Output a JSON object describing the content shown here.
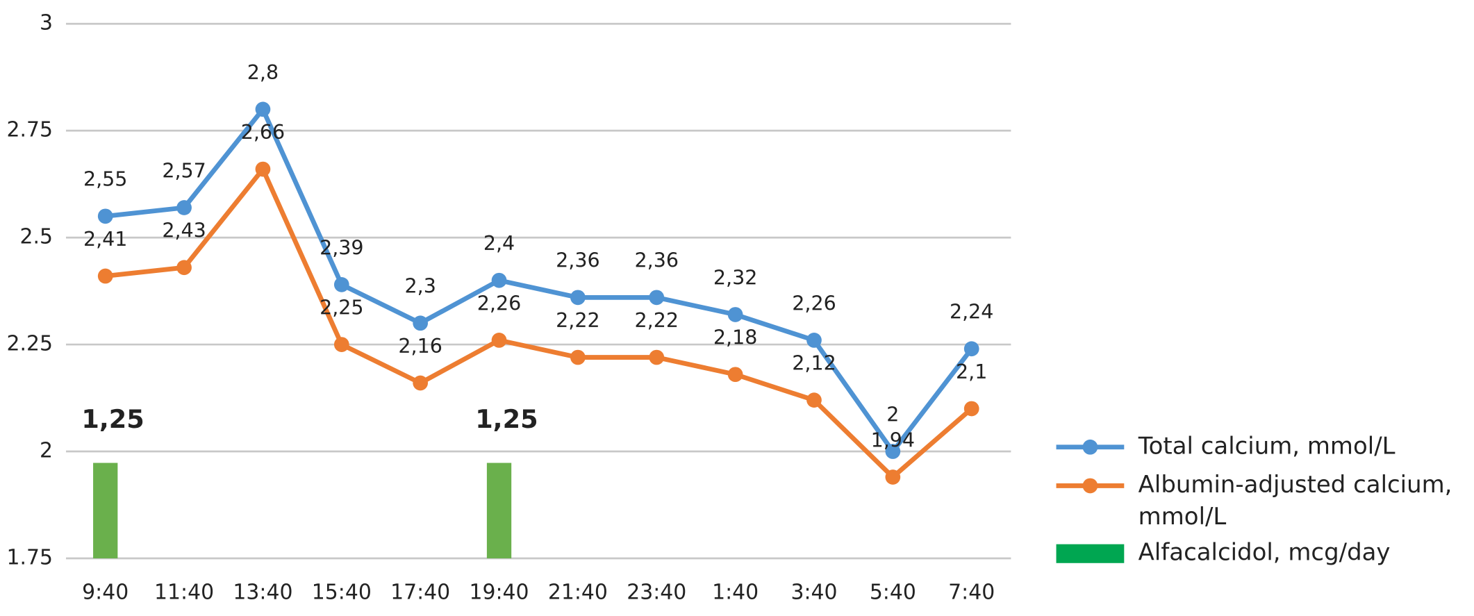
{
  "chart_data": {
    "type": "line",
    "categories": [
      "9:40",
      "11:40",
      "13:40",
      "15:40",
      "17:40",
      "19:40",
      "21:40",
      "23:40",
      "1:40",
      "3:40",
      "5:40",
      "7:40"
    ],
    "series": [
      {
        "name": "Total calcium, mmol/L",
        "color": "#4f93d3",
        "type": "line",
        "values": [
          2.55,
          2.57,
          2.8,
          2.39,
          2.3,
          2.4,
          2.36,
          2.36,
          2.32,
          2.26,
          2,
          2.24
        ],
        "value_labels": [
          "2,55",
          "2,57",
          "2,8",
          "2,39",
          "2,3",
          "2,4",
          "2,36",
          "2,36",
          "2,32",
          "2,26",
          "2",
          "2,24"
        ]
      },
      {
        "name": "Albumin-adjusted calcium, mmol/L",
        "color": "#ed7d31",
        "type": "line",
        "values": [
          2.41,
          2.43,
          2.66,
          2.25,
          2.16,
          2.26,
          2.22,
          2.22,
          2.18,
          2.12,
          1.94,
          2.1
        ],
        "value_labels": [
          "2,41",
          "2,43",
          "2,66",
          "2,25",
          "2,16",
          "2,26",
          "2,22",
          "2,22",
          "2,18",
          "2,12",
          "1,94",
          "2,1"
        ]
      },
      {
        "name": "Alfacalcidol, mcg/day",
        "color": "#6ab04c",
        "type": "bar",
        "axis": "y2",
        "values": [
          1.25,
          null,
          null,
          null,
          null,
          1.25,
          null,
          null,
          null,
          null,
          null,
          null
        ],
        "value_labels": [
          "1,25",
          null,
          null,
          null,
          null,
          "1,25",
          null,
          null,
          null,
          null,
          null,
          null
        ]
      }
    ],
    "ylim": [
      1.75,
      3
    ],
    "yticks": [
      1.75,
      2,
      2.25,
      2.5,
      2.75,
      3
    ],
    "y2lim": [
      0,
      7
    ],
    "grid": true,
    "legend": "right"
  }
}
